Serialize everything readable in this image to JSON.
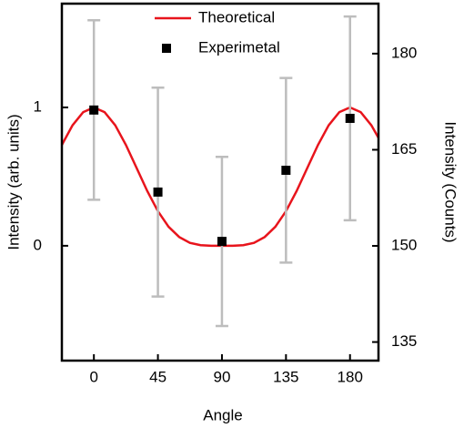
{
  "chart_data": {
    "type": "line",
    "x_label": "Angle",
    "y_label": "Intensity (arb. units)",
    "y2_label": "Intensity (Counts)",
    "xlim": [
      -22.5,
      200
    ],
    "xticks": [
      0,
      45,
      90,
      135,
      180
    ],
    "ylim": [
      -0.83,
      1.75
    ],
    "yticks": [
      0,
      1
    ],
    "y2lim": [
      132.1,
      187.8
    ],
    "y2ticks": [
      135,
      150,
      165,
      180
    ],
    "y_label_color": "#e8141c",
    "series": [
      {
        "name": "Theoretical",
        "type": "line",
        "color": "#e8141c",
        "x": [
          -22.5,
          -15,
          -7.5,
          0,
          7.5,
          15,
          22.5,
          30,
          37.5,
          45,
          52.5,
          60,
          67.5,
          75,
          82.5,
          90,
          97.5,
          105,
          112.5,
          120,
          127.5,
          135,
          142.5,
          150,
          157.5,
          165,
          172.5,
          180,
          187.5,
          195,
          200
        ],
        "values": [
          0.729,
          0.871,
          0.966,
          1,
          0.966,
          0.871,
          0.729,
          0.563,
          0.396,
          0.25,
          0.137,
          0.063,
          0.021,
          0.0045,
          0.0003,
          0,
          0.0003,
          0.0045,
          0.021,
          0.063,
          0.137,
          0.25,
          0.396,
          0.563,
          0.729,
          0.871,
          0.966,
          1,
          0.966,
          0.871,
          0.78
        ]
      },
      {
        "name": "Experimetal",
        "type": "scatter",
        "axis": "y2",
        "color": "#000000",
        "error_color": "#bdbdbd",
        "x": [
          0,
          45,
          90,
          135,
          180
        ],
        "values": [
          171.2,
          158.4,
          150.7,
          161.8,
          169.9
        ],
        "errors": [
          14.0,
          16.3,
          13.2,
          14.4,
          15.9
        ]
      }
    ]
  }
}
